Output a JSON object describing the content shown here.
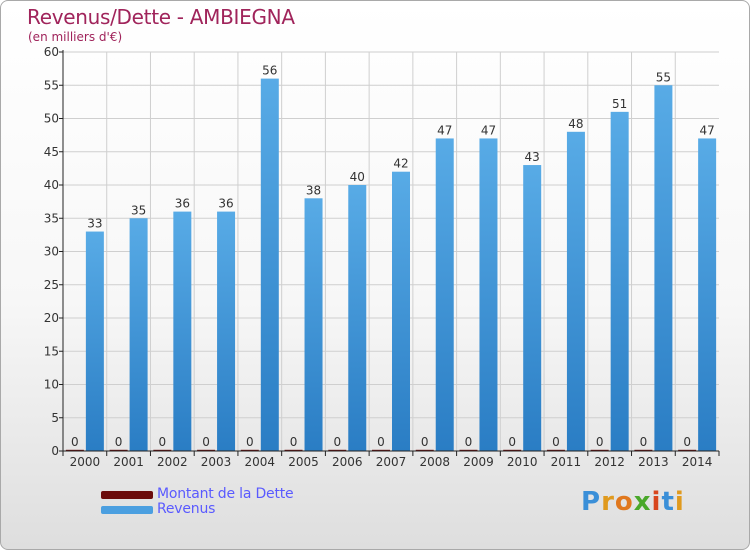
{
  "title": "Revenus/Dette - AMBIEGNA",
  "subtitle": "(en milliers d'€)",
  "logo": {
    "text": "Proxiti",
    "letters": [
      "P",
      "r",
      "o",
      "x",
      "i",
      "t",
      "i"
    ],
    "colors": [
      "#3a8fd8",
      "#e09a1e",
      "#e0781e",
      "#4aa82a",
      "#d8461e",
      "#3a8fd8",
      "#e09a1e"
    ]
  },
  "colors": {
    "dette": "#6b0c0c",
    "revenus": "#4b9fe0",
    "revenus_dark": "#2a7dc4",
    "axis": "#222222",
    "grid": "#cfcfcf",
    "title": "#a0245b",
    "legend_text": "#5a5aff"
  },
  "legend": [
    {
      "label": "Montant de la Dette",
      "color": "#6b0c0c"
    },
    {
      "label": "Revenus",
      "color": "#4b9fe0"
    }
  ],
  "chart_data": {
    "type": "bar",
    "categories": [
      "2000",
      "2001",
      "2002",
      "2003",
      "2004",
      "2005",
      "2006",
      "2007",
      "2008",
      "2009",
      "2010",
      "2011",
      "2012",
      "2013",
      "2014"
    ],
    "series": [
      {
        "name": "Montant de la Dette",
        "values": [
          0,
          0,
          0,
          0,
          0,
          0,
          0,
          0,
          0,
          0,
          0,
          0,
          0,
          0,
          0
        ]
      },
      {
        "name": "Revenus",
        "values": [
          33,
          35,
          36,
          36,
          56,
          38,
          40,
          42,
          47,
          47,
          43,
          48,
          51,
          55,
          47
        ]
      }
    ],
    "title": "Revenus/Dette - AMBIEGNA",
    "subtitle": "(en milliers d'€)",
    "ylim": [
      0,
      60
    ],
    "yticks": [
      0,
      5,
      10,
      15,
      20,
      25,
      30,
      35,
      40,
      45,
      50,
      55,
      60
    ],
    "grid": true,
    "legend_position": "bottom-left"
  }
}
